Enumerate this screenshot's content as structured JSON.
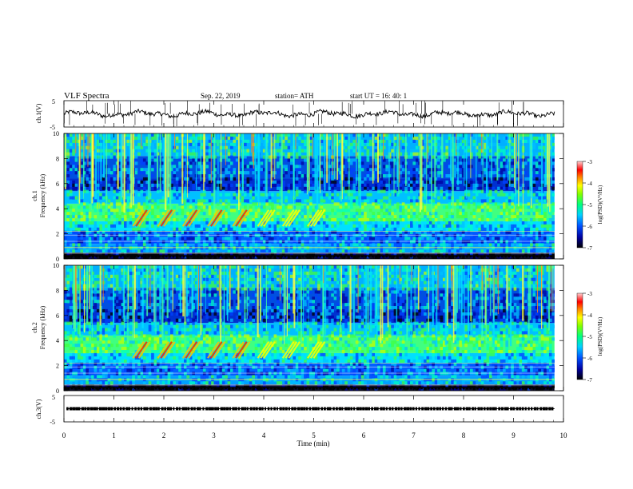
{
  "header": {
    "title": "VLF  Spectra",
    "date": "Sep. 22, 2019",
    "station": "station= ATH",
    "start": "start  UT  =    16: 40: 1"
  },
  "chart_data": [
    {
      "type": "line",
      "name": "ch1-voltage",
      "ylabel": "ch.1(V)",
      "ylim": [
        -5,
        5
      ],
      "yticks": [
        "5",
        "-5"
      ],
      "xlim": [
        0,
        10
      ],
      "description_level": 0
    },
    {
      "type": "heatmap",
      "name": "ch1-spectrogram",
      "ylabel": "ch.1\nFrequency  (kHz)",
      "ylim": [
        0,
        10
      ],
      "yticks": [
        "0",
        "2",
        "4",
        "6",
        "8",
        "10"
      ],
      "xlim": [
        0,
        10
      ],
      "colorbar": {
        "label": "log(PSD)(V²/Hz)",
        "range": [
          -7,
          -3
        ],
        "ticks": [
          "-3",
          "-4",
          "-5",
          "-6",
          "-7"
        ]
      },
      "chorus_bursts_min": [
        1.5,
        2.0,
        2.5,
        3.0,
        3.5,
        4.0,
        4.5,
        5.0
      ]
    },
    {
      "type": "heatmap",
      "name": "ch2-spectrogram",
      "ylabel": "ch.2\nFrequency  (kHz)",
      "ylim": [
        0,
        10
      ],
      "yticks": [
        "0",
        "2",
        "4",
        "6",
        "8",
        "10"
      ],
      "xlim": [
        0,
        10
      ],
      "colorbar": {
        "label": "log(PSD)(V²/Hz)",
        "range": [
          -7,
          -3
        ],
        "ticks": [
          "-3",
          "-4",
          "-5",
          "-6",
          "-7"
        ]
      },
      "chorus_bursts_min": [
        1.5,
        2.0,
        2.5,
        3.0,
        3.5,
        4.0,
        4.5,
        5.0
      ]
    },
    {
      "type": "line",
      "name": "ch3-voltage",
      "ylabel": "ch.3(V)",
      "ylim": [
        -5,
        5
      ],
      "yticks": [
        "5",
        "-5"
      ],
      "xlim": [
        0,
        10
      ],
      "description_level": 0
    }
  ],
  "xaxis": {
    "label": "Time  (min)",
    "ticks": [
      "0",
      "1",
      "2",
      "3",
      "4",
      "5",
      "6",
      "7",
      "8",
      "9",
      "10"
    ],
    "range": [
      0,
      10
    ]
  },
  "colors": {
    "trace": "#000000",
    "cmap": [
      "#000000",
      "#0000a0",
      "#0040ff",
      "#00c0ff",
      "#00ffc0",
      "#40ff40",
      "#c0ff00",
      "#ffff00",
      "#ff8000",
      "#ff0000",
      "#ffffff"
    ]
  }
}
